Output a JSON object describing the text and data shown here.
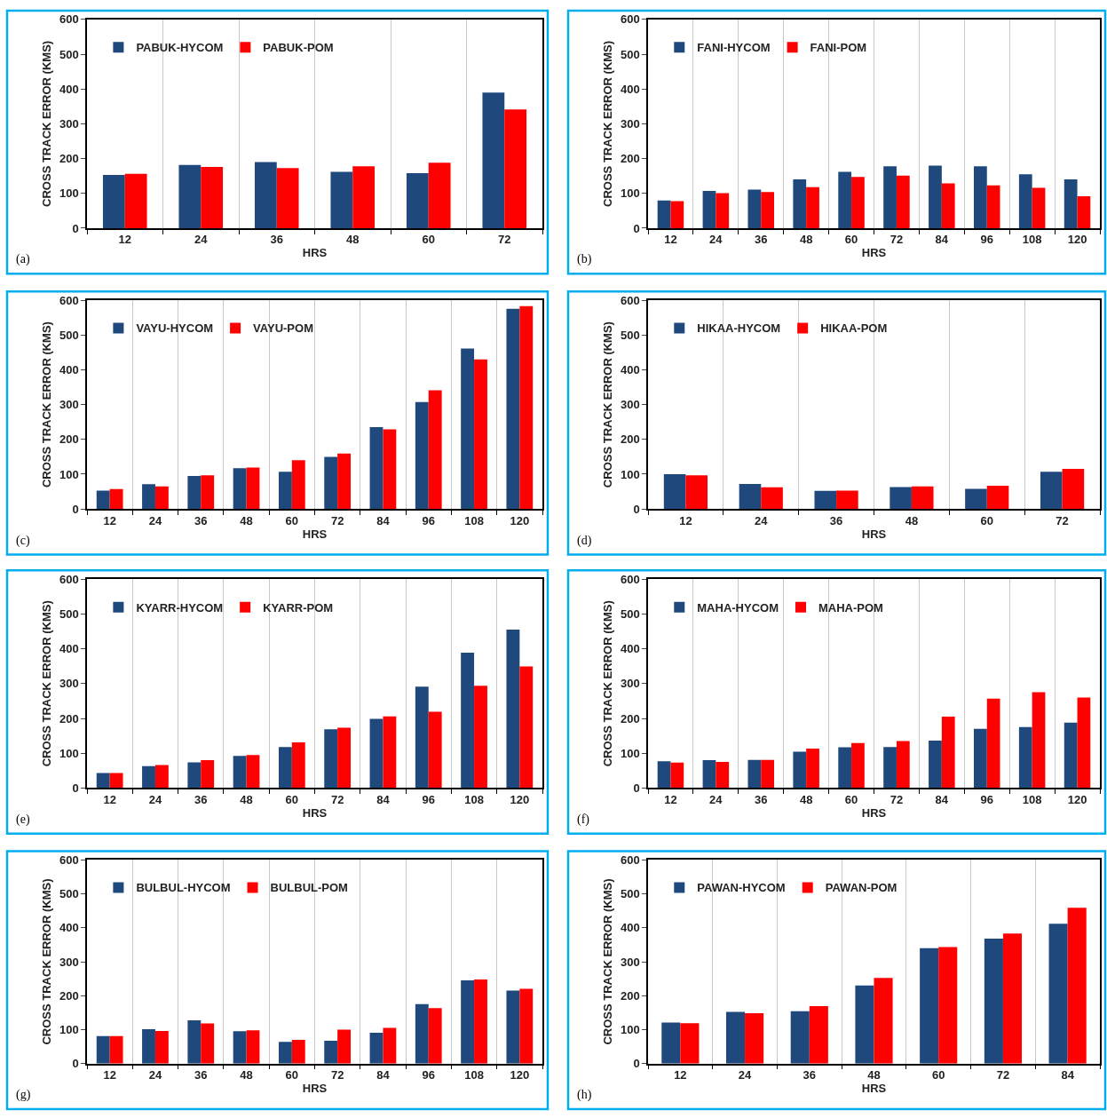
{
  "chart_data": [
    {
      "type": "bar",
      "annotations": [
        "(a)"
      ],
      "xlabel": "HRS",
      "ylabel": "CROSS TRACK ERROR (KMS)",
      "categories": [
        "12",
        "24",
        "36",
        "48",
        "60",
        "72"
      ],
      "series": [
        {
          "name": "PABUK-HYCOM",
          "color": "#1f497d",
          "values": [
            153,
            182,
            190,
            162,
            158,
            390
          ]
        },
        {
          "name": "PABUK-POM",
          "color": "#ff0000",
          "values": [
            156,
            176,
            173,
            178,
            188,
            341
          ]
        }
      ],
      "ylim": [
        0,
        600
      ],
      "yticks": [
        0,
        100,
        200,
        300,
        400,
        500,
        600
      ],
      "grid": "x",
      "legend": "top left"
    },
    {
      "type": "bar",
      "annotations": [
        "(b)"
      ],
      "xlabel": "HRS",
      "ylabel": "CROSS TRACK ERROR (KMS)",
      "categories": [
        "12",
        "24",
        "36",
        "48",
        "60",
        "72",
        "84",
        "96",
        "108",
        "120"
      ],
      "series": [
        {
          "name": "FANI-HYCOM",
          "color": "#1f497d",
          "values": [
            80,
            107,
            111,
            140,
            162,
            178,
            180,
            178,
            155,
            140
          ]
        },
        {
          "name": "FANI-POM",
          "color": "#ff0000",
          "values": [
            78,
            101,
            104,
            118,
            147,
            151,
            129,
            123,
            116,
            92
          ]
        }
      ],
      "ylim": [
        0,
        600
      ],
      "yticks": [
        0,
        100,
        200,
        300,
        400,
        500,
        600
      ],
      "grid": "x",
      "legend": "top left"
    },
    {
      "type": "bar",
      "annotations": [
        "(c)"
      ],
      "xlabel": "HRS",
      "ylabel": "CROSS TRACK ERROR (KMS)",
      "categories": [
        "12",
        "24",
        "36",
        "48",
        "60",
        "72",
        "84",
        "96",
        "108",
        "120"
      ],
      "series": [
        {
          "name": "VAYU-HYCOM",
          "color": "#1f497d",
          "values": [
            53,
            71,
            95,
            117,
            107,
            150,
            235,
            307,
            461,
            575
          ]
        },
        {
          "name": "VAYU-POM",
          "color": "#ff0000",
          "values": [
            57,
            65,
            97,
            119,
            140,
            159,
            229,
            341,
            430,
            583
          ]
        }
      ],
      "ylim": [
        0,
        600
      ],
      "yticks": [
        0,
        100,
        200,
        300,
        400,
        500,
        600
      ],
      "grid": "x",
      "legend": "top left"
    },
    {
      "type": "bar",
      "annotations": [
        "(d)"
      ],
      "xlabel": "HRS",
      "ylabel": "CROSS TRACK ERROR (KMS)",
      "categories": [
        "12",
        "24",
        "36",
        "48",
        "60",
        "72"
      ],
      "series": [
        {
          "name": "HIKAA-HYCOM",
          "color": "#1f497d",
          "values": [
            100,
            72,
            52,
            63,
            58,
            107
          ]
        },
        {
          "name": "HIKAA-POM",
          "color": "#ff0000",
          "values": [
            97,
            62,
            53,
            65,
            67,
            115
          ]
        }
      ],
      "ylim": [
        0,
        600
      ],
      "yticks": [
        0,
        100,
        200,
        300,
        400,
        500,
        600
      ],
      "grid": "x",
      "legend": "top left"
    },
    {
      "type": "bar",
      "annotations": [
        "(e)"
      ],
      "xlabel": "HRS",
      "ylabel": "CROSS TRACK ERROR (KMS)",
      "categories": [
        "12",
        "24",
        "36",
        "48",
        "60",
        "72",
        "84",
        "96",
        "108",
        "120"
      ],
      "series": [
        {
          "name": "KYARR-HYCOM",
          "color": "#1f497d",
          "values": [
            43,
            63,
            74,
            92,
            118,
            169,
            199,
            291,
            389,
            455
          ]
        },
        {
          "name": "KYARR-POM",
          "color": "#ff0000",
          "values": [
            43,
            66,
            80,
            95,
            131,
            173,
            206,
            219,
            294,
            349
          ]
        }
      ],
      "ylim": [
        0,
        600
      ],
      "yticks": [
        0,
        100,
        200,
        300,
        400,
        500,
        600
      ],
      "grid": "x",
      "legend": "top left"
    },
    {
      "type": "bar",
      "annotations": [
        "(f)"
      ],
      "xlabel": "HRS",
      "ylabel": "CROSS TRACK ERROR (KMS)",
      "categories": [
        "12",
        "24",
        "36",
        "48",
        "60",
        "72",
        "84",
        "96",
        "108",
        "120"
      ],
      "series": [
        {
          "name": "MAHA-HYCOM",
          "color": "#1f497d",
          "values": [
            77,
            80,
            81,
            104,
            117,
            118,
            136,
            170,
            175,
            188
          ]
        },
        {
          "name": "MAHA-POM",
          "color": "#ff0000",
          "values": [
            73,
            75,
            81,
            113,
            129,
            135,
            205,
            257,
            275,
            260
          ]
        }
      ],
      "ylim": [
        0,
        600
      ],
      "yticks": [
        0,
        100,
        200,
        300,
        400,
        500,
        600
      ],
      "grid": "x",
      "legend": "top left"
    },
    {
      "type": "bar",
      "annotations": [
        "(g)"
      ],
      "xlabel": "HRS",
      "ylabel": "CROSS TRACK ERROR (KMS)",
      "categories": [
        "12",
        "24",
        "36",
        "48",
        "60",
        "72",
        "84",
        "96",
        "108",
        "120"
      ],
      "series": [
        {
          "name": "BULBUL-HYCOM",
          "color": "#1f497d",
          "values": [
            81,
            101,
            127,
            95,
            64,
            67,
            91,
            175,
            245,
            215
          ]
        },
        {
          "name": "BULBUL-POM",
          "color": "#ff0000",
          "values": [
            81,
            96,
            118,
            98,
            70,
            100,
            105,
            163,
            248,
            220
          ]
        }
      ],
      "ylim": [
        0,
        600
      ],
      "yticks": [
        0,
        100,
        200,
        300,
        400,
        500,
        600
      ],
      "grid": "x",
      "legend": "top left"
    },
    {
      "type": "bar",
      "annotations": [
        "(h)"
      ],
      "xlabel": "HRS",
      "ylabel": "CROSS TRACK ERROR (KMS)",
      "categories": [
        "12",
        "24",
        "36",
        "48",
        "60",
        "72",
        "84"
      ],
      "series": [
        {
          "name": "PAWAN-HYCOM",
          "color": "#1f497d",
          "values": [
            121,
            152,
            154,
            230,
            340,
            368,
            412
          ]
        },
        {
          "name": "PAWAN-POM",
          "color": "#ff0000",
          "values": [
            119,
            148,
            169,
            252,
            343,
            383,
            459
          ]
        }
      ],
      "ylim": [
        0,
        600
      ],
      "yticks": [
        0,
        100,
        200,
        300,
        400,
        500,
        600
      ],
      "grid": "x",
      "legend": "top left"
    }
  ]
}
